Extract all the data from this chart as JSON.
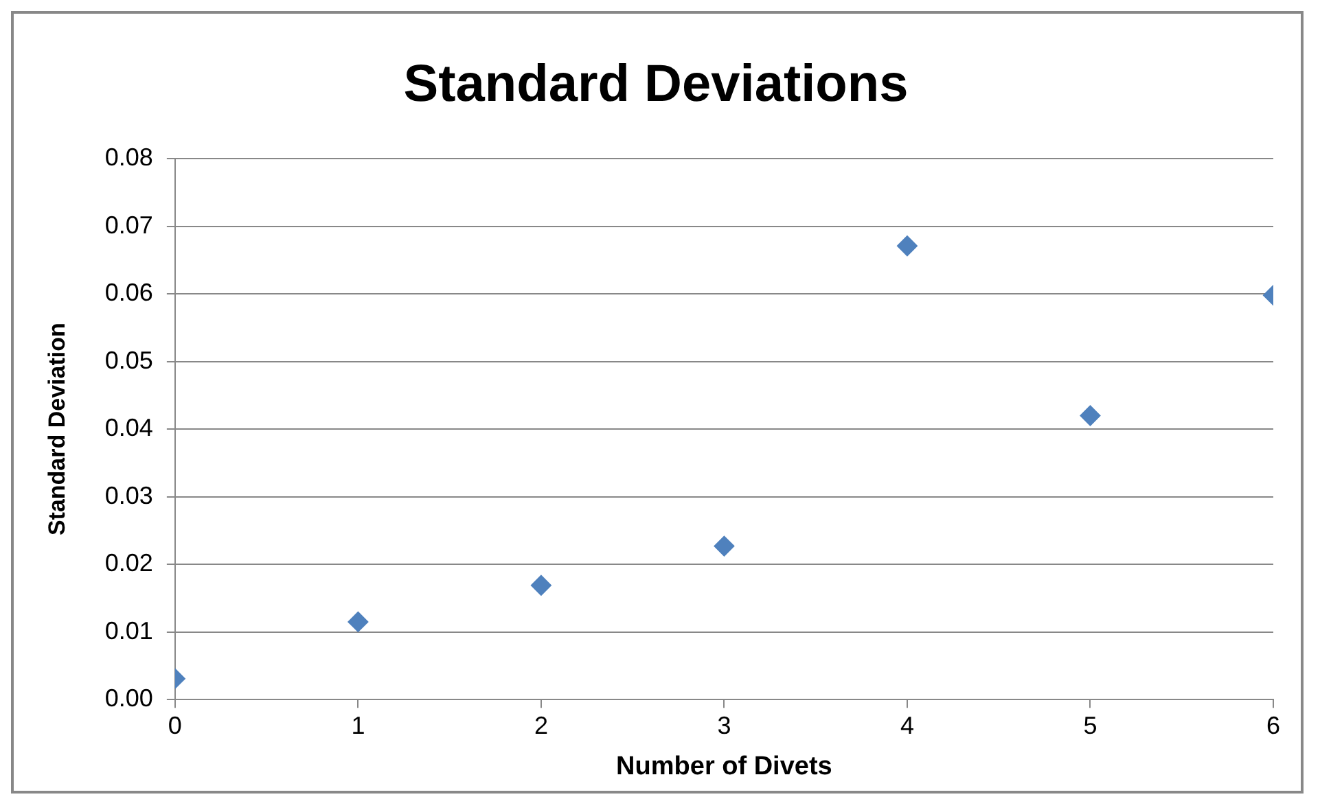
{
  "chart_data": {
    "type": "scatter",
    "title": "Standard Deviations",
    "xlabel": "Number of Divets",
    "ylabel": "Standard Deviation",
    "x": [
      0,
      1,
      2,
      3,
      4,
      5,
      6
    ],
    "series": [
      {
        "color": "#4f81bd",
        "values": [
          0.0031,
          0.0115,
          0.0169,
          0.0227,
          0.0671,
          0.042,
          0.0598
        ]
      }
    ],
    "xlim": [
      0,
      6
    ],
    "xticks": [
      0,
      1,
      2,
      3,
      4,
      5,
      6
    ],
    "ylim": [
      0,
      0.08
    ],
    "yticks": [
      {
        "value": 0,
        "label": "0.00"
      },
      0.01,
      0.02,
      0.03,
      0.04,
      0.05,
      0.06,
      0.07,
      0.08
    ],
    "grid": "y",
    "legend": false,
    "marker": "diamond"
  }
}
